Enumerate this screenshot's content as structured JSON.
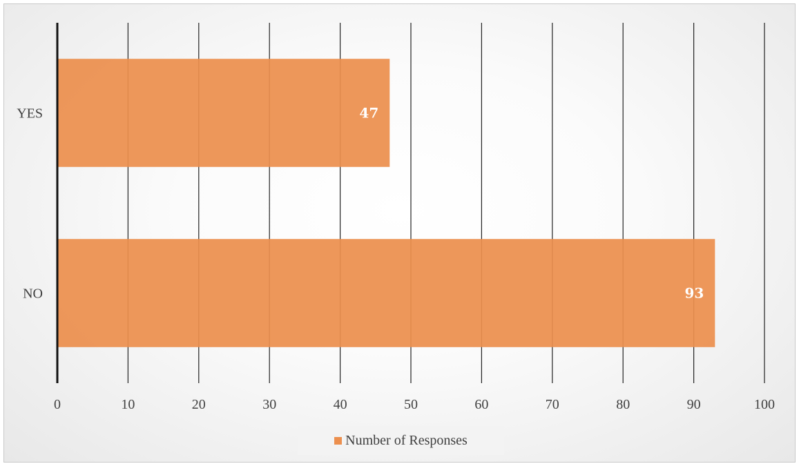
{
  "chart_data": {
    "type": "bar",
    "orientation": "horizontal",
    "categories": [
      "YES",
      "NO"
    ],
    "series": [
      {
        "name": "Number of Responses",
        "values": [
          47,
          93
        ]
      }
    ],
    "xlim": [
      0,
      100
    ],
    "x_ticks": [
      0,
      10,
      20,
      30,
      40,
      50,
      60,
      70,
      80,
      90,
      100
    ],
    "grid": "vertical",
    "data_labels": true,
    "legend": {
      "placement": "bottom",
      "entries": [
        "Number of Responses"
      ]
    },
    "colors": {
      "bar": "#ec8f4e",
      "grid": "#222222",
      "axis": "#111111",
      "data_label": "#ffffff"
    }
  }
}
